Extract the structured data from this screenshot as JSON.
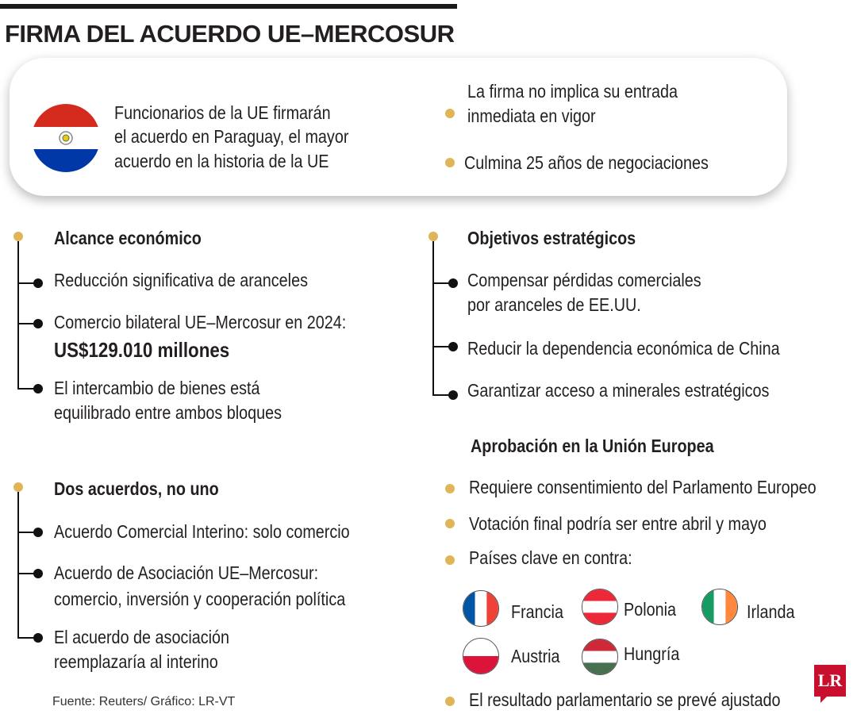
{
  "header": {
    "title": "FIRMA DEL ACUERDO UE–MERCOSUR"
  },
  "intro": {
    "line1": "Funcionarios de la UE firmarán",
    "line2": "el acuerdo en Paraguay, el mayor",
    "line3": "acuerdo en la historia de la UE",
    "bullet1_line1": "La firma no implica su entrada",
    "bullet1_line2": "inmediata en vigor",
    "bullet2": "Culmina 25 años de negociaciones"
  },
  "alcance": {
    "heading": "Alcance económico",
    "item1": "Reducción significativa de aranceles",
    "item2_line1": "Comercio bilateral UE–Mercosur en 2024:",
    "item2_value": "US$129.010 millones",
    "item3_line1": "El intercambio de bienes está",
    "item3_line2": "equilibrado entre ambos bloques"
  },
  "objetivos": {
    "heading": "Objetivos estratégicos",
    "item1_line1": "Compensar pérdidas comerciales",
    "item1_line2": "por aranceles de EE.UU.",
    "item2": "Reducir la dependencia económica de China",
    "item3": "Garantizar acceso a minerales estratégicos"
  },
  "dos_acuerdos": {
    "heading": "Dos acuerdos, no uno",
    "item1": "Acuerdo Comercial Interino: solo comercio",
    "item2_line1": "Acuerdo de Asociación UE–Mercosur:",
    "item2_line2": "comercio, inversión y cooperación política",
    "item3_line1": "El acuerdo de asociación",
    "item3_line2": "reemplazaría al interino"
  },
  "aprobacion": {
    "heading": "Aprobación en la Unión Europea",
    "item1": "Requiere consentimiento del Parlamento Europeo",
    "item2": "Votación final podría ser entre abril y mayo",
    "item3": "Países clave en contra:",
    "countries": [
      "Francia",
      "Polonia",
      "Irlanda",
      "Austria",
      "Hungría"
    ],
    "item4": "El resultado parlamentario se prevé ajustado"
  },
  "footer": {
    "source": "Fuente: Reuters/ Gráfico: LR-VT",
    "logo": "LR"
  },
  "colors": {
    "bullet_gold": "#e0b558",
    "paraguay_red": "#d52b1e",
    "paraguay_blue": "#0038a8",
    "logo_red": "#c8102e"
  }
}
